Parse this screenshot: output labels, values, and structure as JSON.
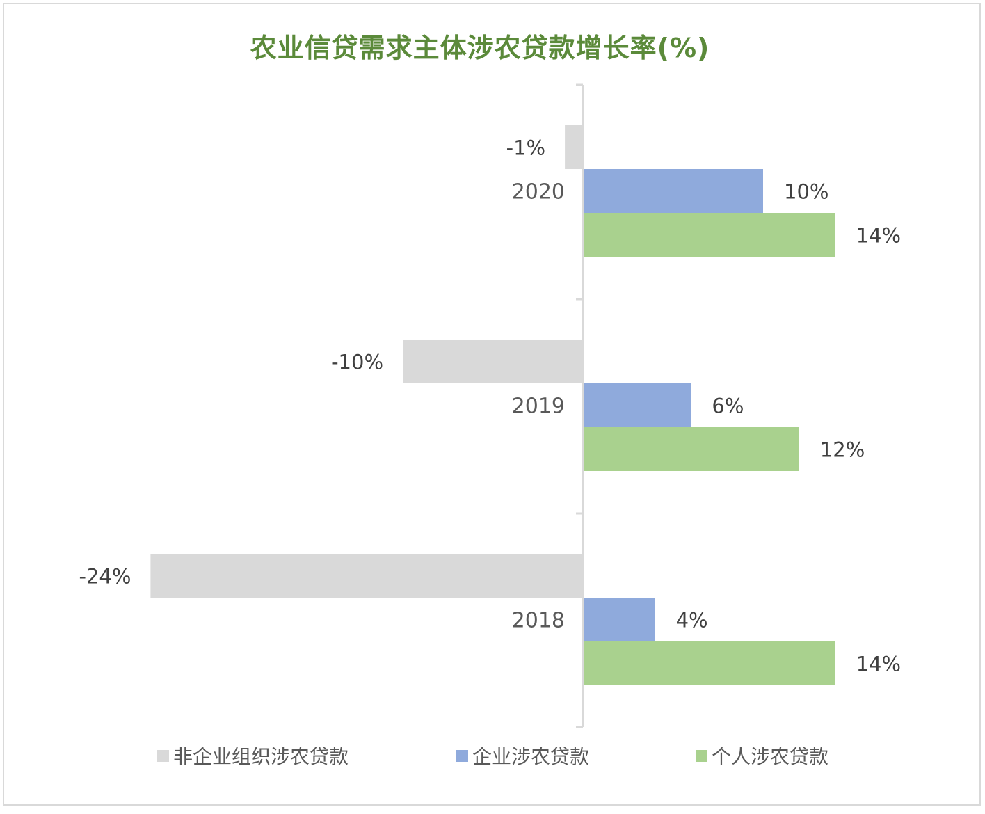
{
  "chart_data": {
    "type": "bar",
    "orientation": "horizontal",
    "title": "农业信贷需求主体涉农贷款增长率(%)",
    "categories": [
      "2020",
      "2019",
      "2018"
    ],
    "series": [
      {
        "name": "非企业组织涉农贷款",
        "color": "#d9d9d9",
        "values": [
          -1,
          -10,
          -24
        ],
        "labels": [
          "-1%",
          "-10%",
          "-24%"
        ]
      },
      {
        "name": "企业涉农贷款",
        "color": "#8faadc",
        "values": [
          10,
          6,
          4
        ],
        "labels": [
          "10%",
          "6%",
          "4%"
        ]
      },
      {
        "name": "个人涉农贷款",
        "color": "#a9d18e",
        "values": [
          14,
          12,
          14
        ],
        "labels": [
          "14%",
          "12%",
          "14%"
        ]
      }
    ],
    "legend_position": "bottom",
    "grid": false
  }
}
